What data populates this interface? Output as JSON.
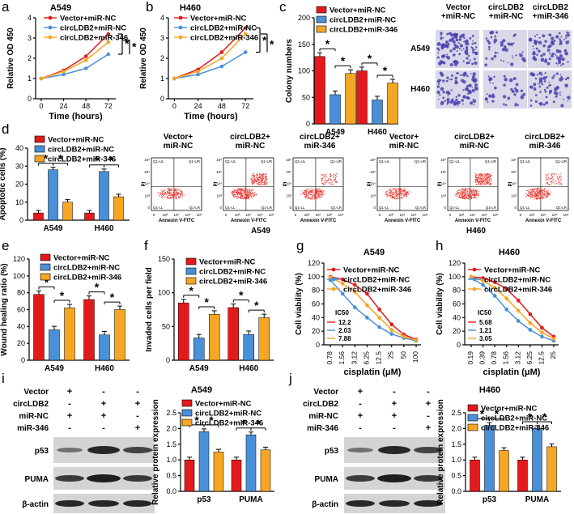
{
  "colors": {
    "vector": "#e31a1c",
    "circ_nc": "#4a90d9",
    "circ_346": "#f5a623",
    "blot_bg": "#d4d4d4",
    "band": "#1e1e1e",
    "colony_bg": "#d8d8e8",
    "colony": "#4a3fb0",
    "flow_dot": "#e8302a"
  },
  "legend": [
    "Vector+miR-NC",
    "circLDB2+miR-NC",
    "circLDB2+miR-346"
  ],
  "star": "*",
  "panels": {
    "a": {
      "letter": "a",
      "title": "A549"
    },
    "b": {
      "letter": "b",
      "title": "H460"
    },
    "c": {
      "letter": "c",
      "img_cols": [
        "Vector\n+miR-NC",
        "circLDB2\n+miR-NC",
        "circLDB2\n+miR-346"
      ],
      "img_rows": [
        "A549",
        "H460"
      ]
    },
    "d": {
      "letter": "d",
      "flow_cols": [
        "Vector+\nmiR-NC",
        "circLDB2+\nmiR-NC",
        "circLDB2+\nmiR-346",
        "Vector+\nmiR-NC",
        "circLDB2+\nmiR-NC",
        "circLDB2+\nmiR-346"
      ],
      "flow_groups": [
        "A549",
        "H460"
      ],
      "flow_x": "Annexin V-FITC",
      "flow_y": "PI",
      "quads": [
        "Q1-UL",
        "Q1-UR",
        "Q1-LL",
        "Q1-LR"
      ],
      "ticks_x": [
        "0",
        "10³",
        "10⁴",
        "10⁵",
        "10⁶"
      ],
      "ticks_y": [
        "0",
        "10³",
        "10⁴",
        "10⁵",
        "10⁶"
      ]
    },
    "e": {
      "letter": "e"
    },
    "f": {
      "letter": "f"
    },
    "g": {
      "letter": "g",
      "title": "A549",
      "ic50_label": "IC50",
      "ic50": [
        "12.2",
        "2.03",
        "7.88"
      ]
    },
    "h": {
      "letter": "h",
      "title": "H460",
      "ic50_label": "IC50",
      "ic50": [
        "5.68",
        "1.21",
        "3.05"
      ]
    },
    "i": {
      "letter": "i",
      "title": "A549",
      "rows": [
        "Vector",
        "circLDB2",
        "miR-NC",
        "miR-346"
      ],
      "signs": [
        [
          "+",
          "-",
          "-"
        ],
        [
          "-",
          "+",
          "+"
        ],
        [
          "+",
          "+",
          "-"
        ],
        [
          "-",
          "-",
          "+"
        ]
      ],
      "blots": [
        "p53",
        "PUMA",
        "β-actin"
      ]
    },
    "j": {
      "letter": "j",
      "title": "H460",
      "rows": [
        "Vector",
        "circLDB2",
        "miR-NC",
        "miR-346"
      ],
      "signs": [
        [
          "+",
          "-",
          "-"
        ],
        [
          "-",
          "+",
          "+"
        ],
        [
          "+",
          "+",
          "-"
        ],
        [
          "-",
          "-",
          "+"
        ]
      ],
      "blots": [
        "p53",
        "PUMA",
        "β-actin"
      ]
    }
  },
  "chart_data": [
    {
      "id": "a",
      "type": "line",
      "title": "A549",
      "xlabel": "Time (hours)",
      "ylabel": "Relative OD 450",
      "x": [
        0,
        24,
        48,
        72
      ],
      "ylim": [
        0,
        4
      ],
      "yticks": [
        0,
        1,
        2,
        3,
        4
      ],
      "series": [
        {
          "name": "Vector+miR-NC",
          "values": [
            1.0,
            1.4,
            2.1,
            3.2
          ]
        },
        {
          "name": "circLDB2+miR-NC",
          "values": [
            1.0,
            1.2,
            1.5,
            2.2
          ]
        },
        {
          "name": "circLDB2+miR-346",
          "values": [
            1.0,
            1.35,
            1.9,
            2.8
          ]
        }
      ]
    },
    {
      "id": "b",
      "type": "line",
      "title": "H460",
      "xlabel": "Time (hours)",
      "ylabel": "Relative OD 450",
      "x": [
        0,
        24,
        48,
        72
      ],
      "ylim": [
        0,
        4
      ],
      "yticks": [
        0,
        1,
        2,
        3,
        4
      ],
      "series": [
        {
          "name": "Vector+miR-NC",
          "values": [
            1.0,
            1.45,
            2.3,
            3.5
          ]
        },
        {
          "name": "circLDB2+miR-NC",
          "values": [
            1.0,
            1.2,
            1.6,
            2.3
          ]
        },
        {
          "name": "circLDB2+miR-346",
          "values": [
            1.0,
            1.35,
            2.0,
            3.2
          ]
        }
      ]
    },
    {
      "id": "c",
      "type": "bar",
      "ylabel": "Colony numbers",
      "categories": [
        "A549",
        "H460"
      ],
      "ylim": [
        0,
        200
      ],
      "yticks": [
        0,
        50,
        100,
        150,
        200
      ],
      "series": [
        {
          "name": "Vector+miR-NC",
          "values": [
            127,
            100
          ]
        },
        {
          "name": "circLDB2+miR-NC",
          "values": [
            55,
            45
          ]
        },
        {
          "name": "circLDB2+miR-346",
          "values": [
            95,
            77
          ]
        }
      ]
    },
    {
      "id": "d",
      "type": "bar",
      "ylabel": "Apoptotic cells (%)",
      "categories": [
        "A549",
        "H460"
      ],
      "ylim": [
        0,
        40
      ],
      "yticks": [
        0,
        10,
        20,
        30,
        40
      ],
      "series": [
        {
          "name": "Vector+miR-NC",
          "values": [
            4,
            4
          ]
        },
        {
          "name": "circLDB2+miR-NC",
          "values": [
            28,
            27
          ]
        },
        {
          "name": "circLDB2+miR-346",
          "values": [
            10,
            13
          ]
        }
      ]
    },
    {
      "id": "e",
      "type": "bar",
      "ylabel": "Wound healing ratio (%)",
      "categories": [
        "A549",
        "H460"
      ],
      "ylim": [
        0,
        120
      ],
      "yticks": [
        0,
        20,
        40,
        60,
        80,
        100,
        120
      ],
      "series": [
        {
          "name": "Vector+miR-NC",
          "values": [
            78,
            72
          ]
        },
        {
          "name": "circLDB2+miR-NC",
          "values": [
            36,
            30
          ]
        },
        {
          "name": "circLDB2+miR-346",
          "values": [
            62,
            60
          ]
        }
      ]
    },
    {
      "id": "f",
      "type": "bar",
      "ylabel": "Invaded cells per field",
      "categories": [
        "A549",
        "H460"
      ],
      "ylim": [
        0,
        150
      ],
      "yticks": [
        0,
        50,
        100,
        150
      ],
      "series": [
        {
          "name": "Vector+miR-NC",
          "values": [
            85,
            78
          ]
        },
        {
          "name": "circLDB2+miR-NC",
          "values": [
            33,
            38
          ]
        },
        {
          "name": "circLDB2+miR-346",
          "values": [
            68,
            63
          ]
        }
      ]
    },
    {
      "id": "g",
      "type": "line",
      "title": "A549",
      "xlabel": "cisplatin (μM)",
      "ylabel": "Cell viability (%)",
      "categories": [
        "0.78",
        "1.56",
        "3.12",
        "6.25",
        "12.5",
        "25",
        "50",
        "100"
      ],
      "ylim": [
        0,
        120
      ],
      "yticks": [
        0,
        20,
        40,
        60,
        80,
        100,
        120
      ],
      "series": [
        {
          "name": "Vector+miR-NC",
          "values": [
            100,
            96,
            88,
            75,
            52,
            30,
            15,
            8
          ]
        },
        {
          "name": "circLDB2+miR-NC",
          "values": [
            95,
            75,
            55,
            40,
            26,
            16,
            10,
            6
          ]
        },
        {
          "name": "circLDB2+miR-346",
          "values": [
            99,
            90,
            78,
            58,
            40,
            22,
            12,
            7
          ]
        }
      ]
    },
    {
      "id": "h",
      "type": "line",
      "title": "H460",
      "xlabel": "cisplatin (μM)",
      "ylabel": "Cell viability (%)",
      "categories": [
        "0.19",
        "0.39",
        "0.78",
        "1.56",
        "3.12",
        "6.25",
        "12.5",
        "25"
      ],
      "ylim": [
        0,
        120
      ],
      "yticks": [
        0,
        20,
        40,
        60,
        80,
        100,
        120
      ],
      "series": [
        {
          "name": "Vector+miR-NC",
          "values": [
            100,
            98,
            92,
            82,
            65,
            45,
            25,
            12
          ]
        },
        {
          "name": "circLDB2+miR-NC",
          "values": [
            98,
            88,
            72,
            52,
            35,
            22,
            12,
            6
          ]
        },
        {
          "name": "circLDB2+miR-346",
          "values": [
            100,
            94,
            84,
            68,
            50,
            32,
            18,
            9
          ]
        }
      ]
    },
    {
      "id": "i",
      "type": "bar",
      "ylabel": "Relative protein expression",
      "categories": [
        "p53",
        "PUMA"
      ],
      "ylim": [
        0,
        2.5
      ],
      "yticks": [
        "0.0",
        "0.5",
        "1.0",
        "1.5",
        "2.0",
        "2.5"
      ],
      "series": [
        {
          "name": "Vector+miR-NC",
          "values": [
            1.0,
            1.0
          ]
        },
        {
          "name": "circLDB2+miR-NC",
          "values": [
            1.9,
            1.8
          ]
        },
        {
          "name": "circLDB2+miR-346",
          "values": [
            1.25,
            1.32
          ]
        }
      ]
    },
    {
      "id": "j",
      "type": "bar",
      "ylabel": "Relative protein expression",
      "categories": [
        "p53",
        "PUMA"
      ],
      "ylim": [
        0,
        2.5
      ],
      "yticks": [
        "0.0",
        "0.5",
        "1.0",
        "1.5",
        "2.0",
        "2.5"
      ],
      "series": [
        {
          "name": "Vector+miR-NC",
          "values": [
            1.0,
            1.0
          ]
        },
        {
          "name": "circLDB2+miR-NC",
          "values": [
            2.1,
            2.0
          ]
        },
        {
          "name": "circLDB2+miR-346",
          "values": [
            1.3,
            1.42
          ]
        }
      ]
    }
  ]
}
